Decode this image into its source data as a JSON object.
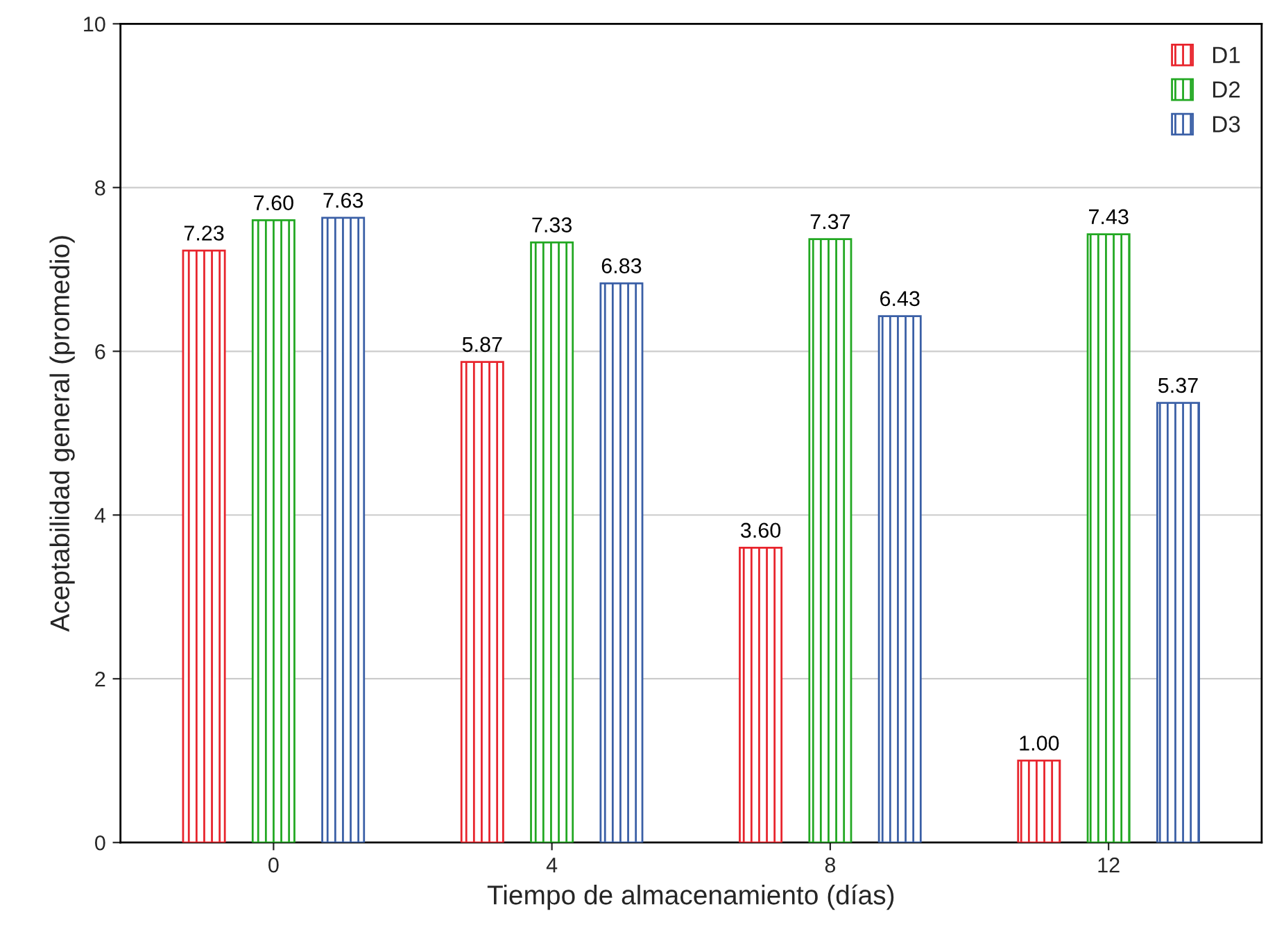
{
  "chart_data": {
    "type": "bar",
    "xlabel": "Tiempo de almacenamiento (días)",
    "ylabel": "Aceptabilidad general (promedio)",
    "categories": [
      "0",
      "4",
      "8",
      "12"
    ],
    "series": [
      {
        "name": "D1",
        "color": "#e8242c",
        "values": [
          7.23,
          5.87,
          3.6,
          1.0
        ],
        "value_labels": [
          "7.23",
          "5.87",
          "3.60",
          "1.00"
        ]
      },
      {
        "name": "D2",
        "color": "#22a822",
        "values": [
          7.6,
          7.33,
          7.37,
          7.43
        ],
        "value_labels": [
          "7.60",
          "7.33",
          "7.37",
          "7.43"
        ]
      },
      {
        "name": "D3",
        "color": "#3a5fa6",
        "values": [
          7.63,
          6.83,
          6.43,
          5.37
        ],
        "value_labels": [
          "7.63",
          "6.83",
          "6.43",
          "5.37"
        ]
      }
    ],
    "ylim": [
      0,
      10
    ],
    "yticks": [
      0,
      2,
      4,
      6,
      8,
      10
    ],
    "grid": "y",
    "legend": "top right"
  }
}
